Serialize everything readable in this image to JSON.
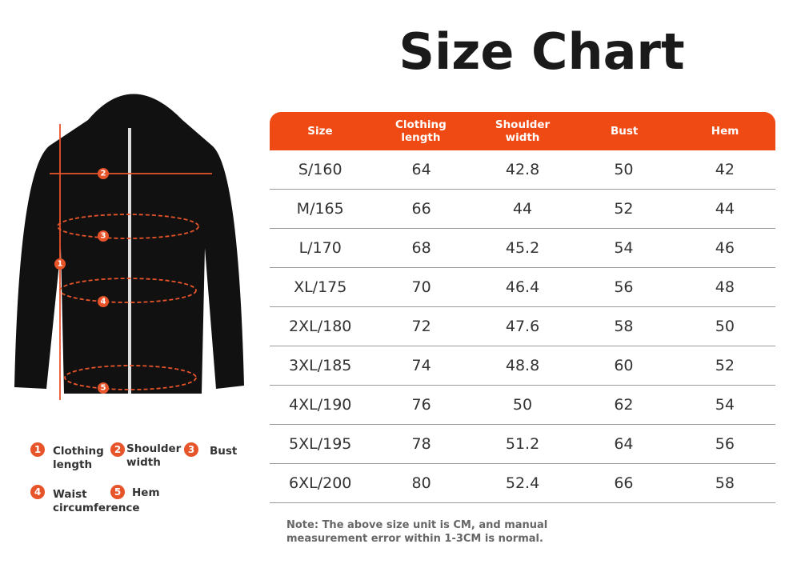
{
  "title": "Size Chart",
  "table": {
    "headers": [
      "Size",
      "Clothing length",
      "Shoulder width",
      "Bust",
      "Hem"
    ],
    "rows": [
      [
        "S/160",
        64,
        42.8,
        50,
        42
      ],
      [
        "M/165",
        66,
        44,
        52,
        44
      ],
      [
        "L/170",
        68,
        45.2,
        54,
        46
      ],
      [
        "XL/175",
        70,
        46.4,
        56,
        48
      ],
      [
        "2XL/180",
        72,
        47.6,
        58,
        50
      ],
      [
        "3XL/185",
        74,
        48.8,
        60,
        52
      ],
      [
        "4XL/190",
        76,
        50,
        62,
        54
      ],
      [
        "5XL/195",
        78,
        51.2,
        64,
        56
      ],
      [
        "6XL/200",
        80,
        52.4,
        66,
        58
      ]
    ]
  },
  "legend": {
    "items": [
      {
        "number": "1",
        "label": "Clothing length"
      },
      {
        "number": "2",
        "label": "Shoulder width"
      },
      {
        "number": "3",
        "label": "Bust"
      },
      {
        "number": "4",
        "label": "Waist circumference"
      },
      {
        "number": "5",
        "label": "Hem"
      }
    ]
  },
  "note": "Note: The above size unit is CM, and manual measurement error within 1-3CM is normal."
}
